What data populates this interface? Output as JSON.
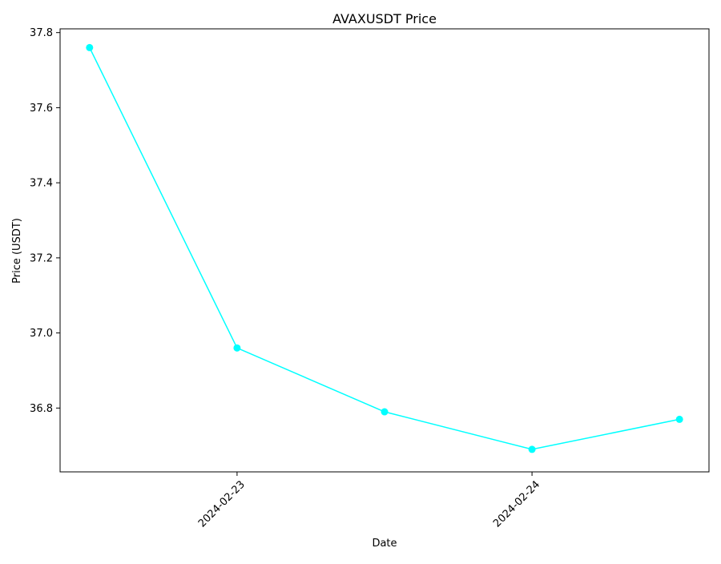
{
  "chart_data": {
    "type": "line",
    "title": "AVAXUSDT Price",
    "xlabel": "Date",
    "ylabel": "Price (USDT)",
    "x": [
      "2024-02-22 12:00",
      "2024-02-23 00:00",
      "2024-02-23 12:00",
      "2024-02-24 00:00",
      "2024-02-24 12:00"
    ],
    "series": [
      {
        "values": [
          37.76,
          36.96,
          36.79,
          36.69,
          36.77
        ],
        "color": "#00FFFF",
        "marker": "circle"
      }
    ],
    "xticks": [
      "2024-02-23",
      "2024-02-24"
    ],
    "yticks": [
      36.8,
      37.0,
      37.2,
      37.4,
      37.6,
      37.8
    ],
    "ylim": [
      36.63,
      37.81
    ],
    "xtick_rotation_deg": 45,
    "grid": false,
    "legend": "none"
  }
}
